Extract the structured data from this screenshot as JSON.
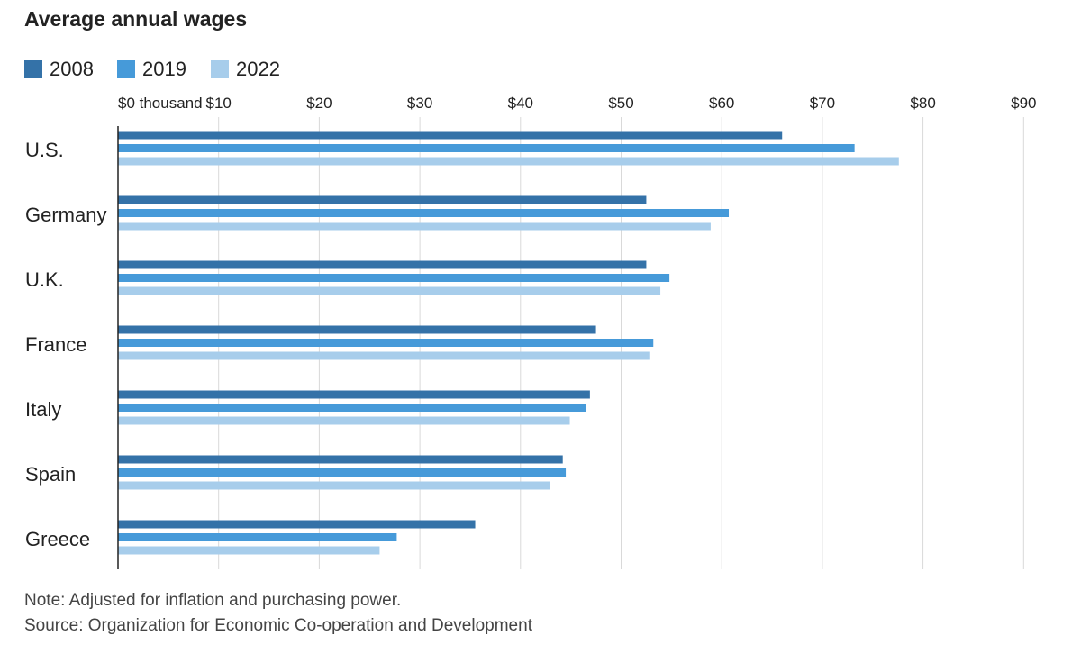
{
  "chart_data": {
    "type": "bar",
    "orientation": "horizontal",
    "title": "Average annual wages",
    "categories": [
      "U.S.",
      "Germany",
      "U.K.",
      "France",
      "Italy",
      "Spain",
      "Greece"
    ],
    "series": [
      {
        "name": "2008",
        "color": "#3472a8",
        "values": [
          66.0,
          52.5,
          52.5,
          47.5,
          46.9,
          44.2,
          35.5
        ]
      },
      {
        "name": "2019",
        "color": "#469ad9",
        "values": [
          73.2,
          60.7,
          54.8,
          53.2,
          46.5,
          44.5,
          27.7
        ]
      },
      {
        "name": "2022",
        "color": "#a7cdeb",
        "values": [
          77.6,
          58.9,
          53.9,
          52.8,
          44.9,
          42.9,
          26.0
        ]
      }
    ],
    "xlim": [
      0,
      90
    ],
    "xticks": [
      0,
      10,
      20,
      30,
      40,
      50,
      60,
      70,
      80,
      90
    ],
    "xtick_labels": [
      "$0 thousand",
      "$10",
      "$20",
      "$30",
      "$40",
      "$50",
      "$60",
      "$70",
      "$80",
      "$90"
    ],
    "grid": true,
    "legend_position": "top-left",
    "note": "Note: Adjusted for inflation and purchasing power.",
    "source": "Source: Organization for Economic Co-operation and Development"
  }
}
